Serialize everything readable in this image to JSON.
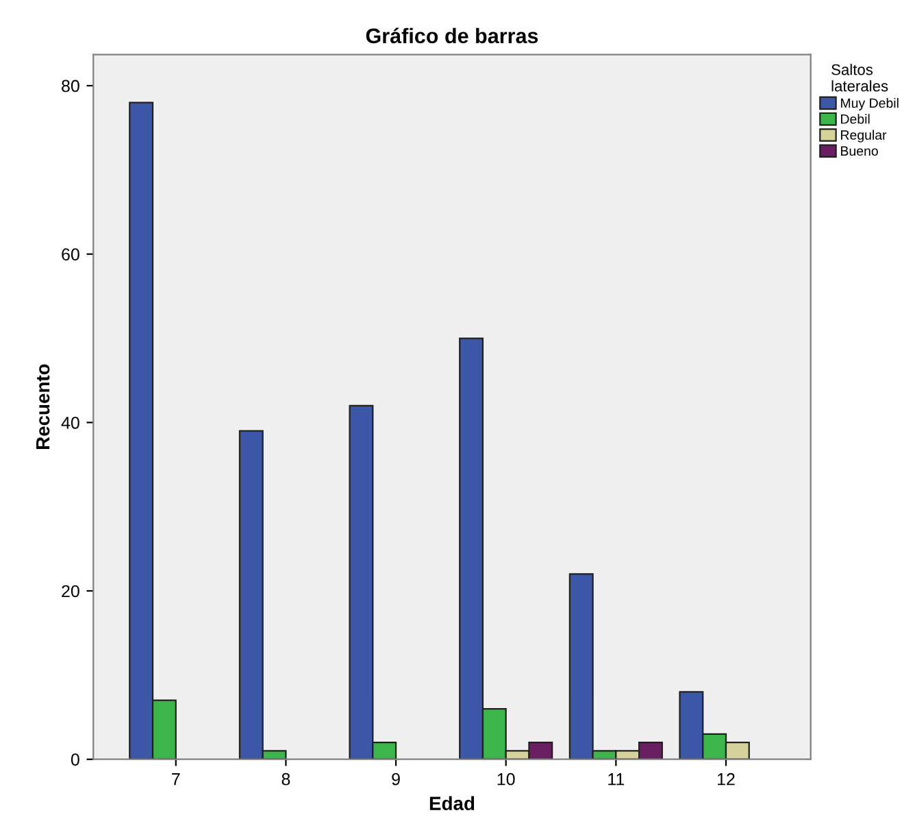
{
  "chart_data": {
    "type": "bar",
    "title": "Gráfico de barras",
    "xlabel": "Edad",
    "ylabel": "Recuento",
    "legend_title": "Saltos laterales",
    "legend": "top right",
    "categories": [
      "7",
      "8",
      "9",
      "10",
      "11",
      "12"
    ],
    "series": [
      {
        "name": "Muy Debil",
        "color": "#3c57a8",
        "values": [
          78,
          39,
          42,
          50,
          22,
          8
        ]
      },
      {
        "name": "Debil",
        "color": "#3cb64a",
        "values": [
          7,
          1,
          2,
          6,
          1,
          3
        ]
      },
      {
        "name": "Regular",
        "color": "#d6d39a",
        "values": [
          null,
          null,
          null,
          1,
          1,
          2
        ]
      },
      {
        "name": "Bueno",
        "color": "#6a1f63",
        "values": [
          null,
          null,
          null,
          2,
          2,
          null
        ]
      }
    ],
    "ylim": [
      0,
      83.7
    ],
    "yticks": [
      0,
      20,
      40,
      60,
      80
    ],
    "grid": false
  }
}
